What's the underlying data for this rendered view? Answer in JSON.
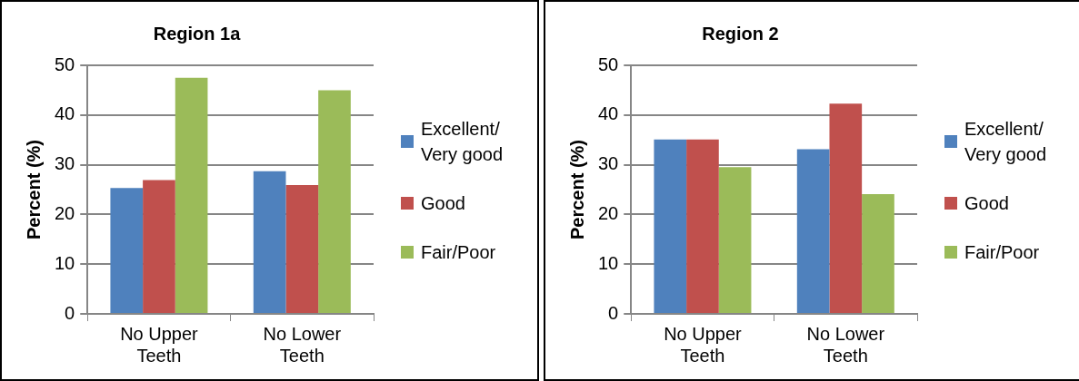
{
  "chart_data": [
    {
      "type": "bar",
      "title": "Region 1a",
      "ylabel": "Percent (%)",
      "categories": [
        "No Upper Teeth",
        "No Lower Teeth"
      ],
      "series": [
        {
          "name": "Excellent/ Very good",
          "color": "#4f81bd",
          "values": [
            25.3,
            28.7
          ]
        },
        {
          "name": "Good",
          "color": "#c0504d",
          "values": [
            26.9,
            25.9
          ]
        },
        {
          "name": "Fair/Poor",
          "color": "#9bbb59",
          "values": [
            47.5,
            45.0
          ]
        }
      ],
      "ylim": [
        0,
        50
      ],
      "yticks": [
        0,
        10,
        20,
        30,
        40,
        50
      ],
      "grid": "y",
      "legend": "right"
    },
    {
      "type": "bar",
      "title": "Region 2",
      "ylabel": "Percent (%)",
      "categories": [
        "No Upper Teeth",
        "No Lower Teeth"
      ],
      "series": [
        {
          "name": "Excellent/ Very good",
          "color": "#4f81bd",
          "values": [
            35.1,
            33.1
          ]
        },
        {
          "name": "Good",
          "color": "#c0504d",
          "values": [
            35.1,
            42.3
          ]
        },
        {
          "name": "Fair/Poor",
          "color": "#9bbb59",
          "values": [
            29.5,
            24.1
          ]
        }
      ],
      "ylim": [
        0,
        50
      ],
      "yticks": [
        0,
        10,
        20,
        30,
        40,
        50
      ],
      "grid": "y",
      "legend": "right"
    }
  ]
}
